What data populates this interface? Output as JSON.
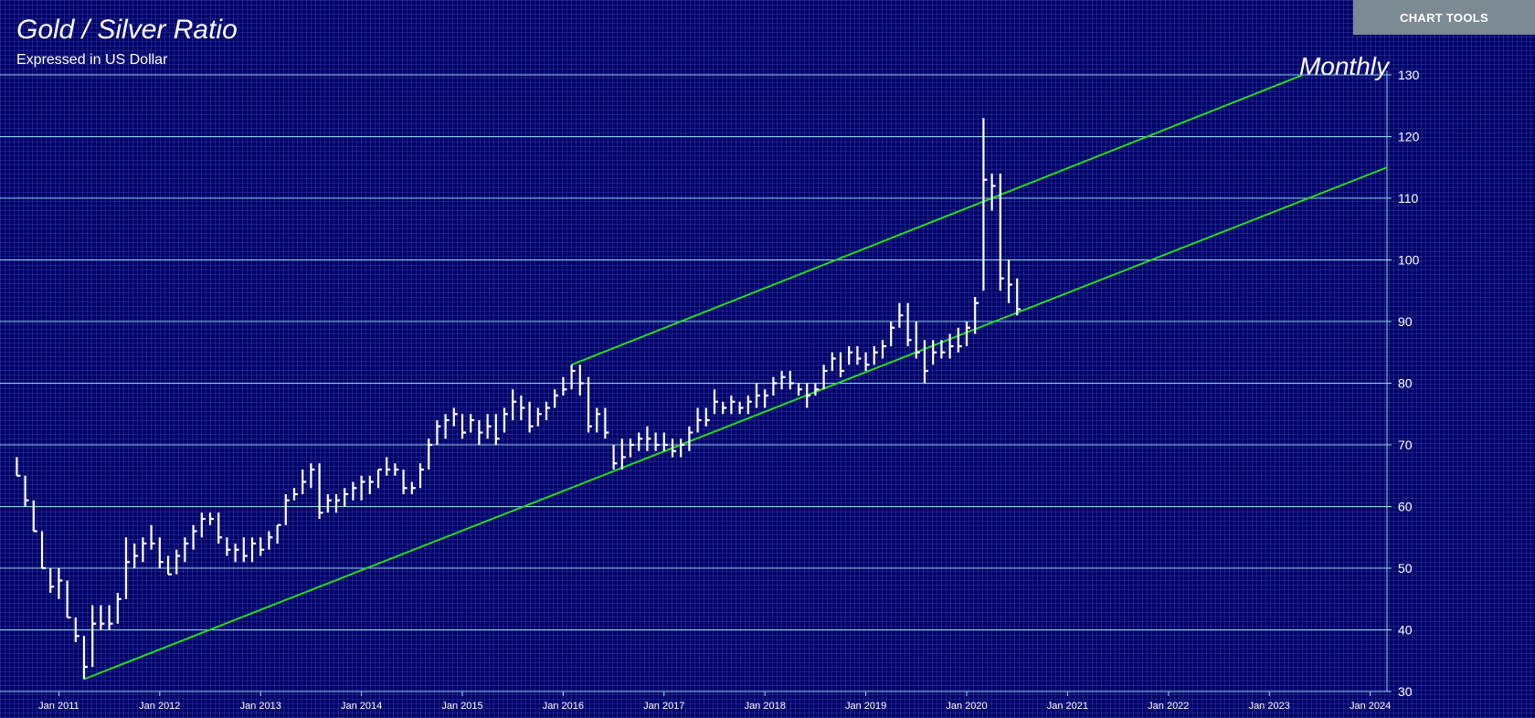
{
  "toolbar": {
    "button": "CHART TOOLS"
  },
  "chart_data": {
    "type": "ohlc",
    "title": "Gold / Silver Ratio",
    "subtitle": "Expressed in US Dollar",
    "annotation": "Monthly",
    "color": "#ffffff",
    "x": [
      "2010-08",
      "2010-09",
      "2010-10",
      "2010-11",
      "2010-12",
      "2011-01",
      "2011-02",
      "2011-03",
      "2011-04",
      "2011-05",
      "2011-06",
      "2011-07",
      "2011-08",
      "2011-09",
      "2011-10",
      "2011-11",
      "2011-12",
      "2012-01",
      "2012-02",
      "2012-03",
      "2012-04",
      "2012-05",
      "2012-06",
      "2012-07",
      "2012-08",
      "2012-09",
      "2012-10",
      "2012-11",
      "2012-12",
      "2013-01",
      "2013-02",
      "2013-03",
      "2013-04",
      "2013-05",
      "2013-06",
      "2013-07",
      "2013-08",
      "2013-09",
      "2013-10",
      "2013-11",
      "2013-12",
      "2014-01",
      "2014-02",
      "2014-03",
      "2014-04",
      "2014-05",
      "2014-06",
      "2014-07",
      "2014-08",
      "2014-09",
      "2014-10",
      "2014-11",
      "2014-12",
      "2015-01",
      "2015-02",
      "2015-03",
      "2015-04",
      "2015-05",
      "2015-06",
      "2015-07",
      "2015-08",
      "2015-09",
      "2015-10",
      "2015-11",
      "2015-12",
      "2016-01",
      "2016-02",
      "2016-03",
      "2016-04",
      "2016-05",
      "2016-06",
      "2016-07",
      "2016-08",
      "2016-09",
      "2016-10",
      "2016-11",
      "2016-12",
      "2017-01",
      "2017-02",
      "2017-03",
      "2017-04",
      "2017-05",
      "2017-06",
      "2017-07",
      "2017-08",
      "2017-09",
      "2017-10",
      "2017-11",
      "2017-12",
      "2018-01",
      "2018-02",
      "2018-03",
      "2018-04",
      "2018-05",
      "2018-06",
      "2018-07",
      "2018-08",
      "2018-09",
      "2018-10",
      "2018-11",
      "2018-12",
      "2019-01",
      "2019-02",
      "2019-03",
      "2019-04",
      "2019-05",
      "2019-06",
      "2019-07",
      "2019-08",
      "2019-09",
      "2019-10",
      "2019-11",
      "2019-12",
      "2020-01",
      "2020-02",
      "2020-03",
      "2020-04",
      "2020-05",
      "2020-06",
      "2020-07"
    ],
    "high": [
      68,
      65,
      61,
      56,
      50,
      50,
      48,
      42,
      39,
      44,
      44,
      44,
      46,
      55,
      54,
      55,
      57,
      55,
      52,
      53,
      55,
      57,
      59,
      59,
      59,
      55,
      54,
      55,
      55,
      55,
      56,
      57,
      62,
      63,
      66,
      67,
      67,
      62,
      62,
      63,
      64,
      65,
      65,
      66,
      68,
      67,
      66,
      64,
      67,
      71,
      74,
      75,
      76,
      75,
      75,
      74,
      75,
      75,
      76,
      79,
      78,
      77,
      76,
      77,
      79,
      81,
      83,
      83,
      81,
      76,
      76,
      70,
      71,
      71,
      72,
      73,
      72,
      72,
      71,
      71,
      73,
      76,
      76,
      79,
      77,
      78,
      77,
      78,
      80,
      79,
      81,
      82,
      82,
      80,
      80,
      80,
      83,
      85,
      85,
      86,
      86,
      85,
      86,
      87,
      90,
      93,
      93,
      90,
      87,
      87,
      87,
      88,
      89,
      90,
      94,
      123,
      114,
      114,
      100,
      97
    ],
    "low": [
      65,
      60,
      56,
      50,
      46,
      45,
      42,
      38,
      32,
      34,
      40,
      40,
      41,
      45,
      50,
      51,
      53,
      50,
      49,
      49,
      51,
      53,
      55,
      57,
      54,
      52,
      51,
      51,
      51,
      52,
      53,
      54,
      57,
      61,
      62,
      63,
      58,
      59,
      59,
      60,
      61,
      61,
      62,
      63,
      65,
      65,
      62,
      62,
      63,
      66,
      70,
      71,
      73,
      71,
      72,
      70,
      71,
      70,
      72,
      74,
      74,
      72,
      73,
      74,
      76,
      78,
      79,
      78,
      72,
      72,
      71,
      66,
      66,
      68,
      69,
      69,
      69,
      69,
      68,
      68,
      69,
      72,
      73,
      75,
      75,
      75,
      75,
      75,
      76,
      76,
      78,
      79,
      79,
      78,
      76,
      78,
      79,
      82,
      81,
      83,
      83,
      82,
      83,
      84,
      86,
      89,
      86,
      84,
      80,
      83,
      84,
      84,
      85,
      86,
      88,
      95,
      108,
      95,
      93,
      91
    ],
    "close": [
      65,
      61,
      56,
      50,
      47,
      48,
      42,
      39,
      34,
      41,
      41,
      41,
      45,
      51,
      52,
      54,
      54,
      51,
      49,
      52,
      54,
      56,
      58,
      58,
      55,
      53,
      53,
      52,
      54,
      53,
      55,
      57,
      61,
      62,
      64,
      66,
      59,
      61,
      61,
      62,
      63,
      64,
      64,
      66,
      66,
      66,
      63,
      63,
      66,
      70,
      73,
      74,
      75,
      72,
      74,
      72,
      73,
      71,
      75,
      77,
      76,
      73,
      75,
      76,
      78,
      79,
      82,
      80,
      73,
      75,
      72,
      67,
      68,
      70,
      71,
      71,
      70,
      70,
      69,
      70,
      72,
      74,
      74,
      77,
      76,
      77,
      76,
      77,
      78,
      78,
      80,
      81,
      80,
      79,
      78,
      79,
      82,
      84,
      82,
      85,
      84,
      83,
      85,
      86,
      89,
      91,
      87,
      85,
      82,
      85,
      85,
      86,
      86,
      89,
      93,
      113,
      112,
      97,
      96,
      92
    ],
    "trendlines": [
      {
        "x": [
          "2011-04",
          "2024-03"
        ],
        "y": [
          32,
          115
        ]
      },
      {
        "x": [
          "2016-02",
          "2023-05"
        ],
        "y": [
          83,
          130
        ]
      }
    ],
    "trend_color": "#22dd22",
    "xlim": [
      "2010-06",
      "2024-03"
    ],
    "xticks": [
      {
        "value": "2011-01",
        "label": "Jan 2011"
      },
      {
        "value": "2012-01",
        "label": "Jan 2012"
      },
      {
        "value": "2013-01",
        "label": "Jan 2013"
      },
      {
        "value": "2014-01",
        "label": "Jan 2014"
      },
      {
        "value": "2015-01",
        "label": "Jan 2015"
      },
      {
        "value": "2016-01",
        "label": "Jan 2016"
      },
      {
        "value": "2017-01",
        "label": "Jan 2017"
      },
      {
        "value": "2018-01",
        "label": "Jan 2018"
      },
      {
        "value": "2019-01",
        "label": "Jan 2019"
      },
      {
        "value": "2020-01",
        "label": "Jan 2020"
      },
      {
        "value": "2021-01",
        "label": "Jan 2021"
      },
      {
        "value": "2022-01",
        "label": "Jan 2022"
      },
      {
        "value": "2023-01",
        "label": "Jan 2023"
      },
      {
        "value": "2024-01",
        "label": "Jan 2024"
      }
    ],
    "ylim": [
      30,
      130
    ],
    "yticks": [
      30,
      40,
      50,
      60,
      70,
      80,
      90,
      100,
      110,
      120,
      130
    ],
    "grid": true
  }
}
